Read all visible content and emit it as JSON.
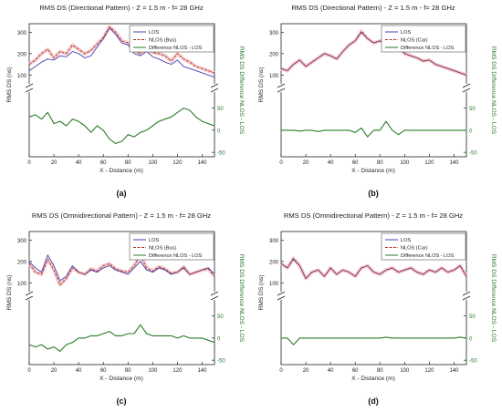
{
  "colors": {
    "los": "#4a3fb0",
    "nlos": "#b03030",
    "nlos_shade": "#f2c4c4",
    "diff": "#2a7a2a",
    "axis": "#222222",
    "right_axis": "#2a7a2a"
  },
  "panels": [
    {
      "label": "(a)",
      "title": "RMS DS (Directional Pattern) - Z = 1.5 m - f= 28 GHz",
      "ylabel_left": "RMS DS (ns)",
      "ylabel_right": "RMS DS Difference NLOS - LOS",
      "xlabel": "X - Distance (m)",
      "legend": [
        "LOS",
        "NLOS (Bus)",
        "Difference NLOS - LOS"
      ],
      "left_ticks": [
        100,
        200,
        300
      ],
      "right_ticks": [
        -50,
        0,
        50
      ],
      "x_ticks": [
        0,
        20,
        40,
        60,
        80,
        100,
        120,
        140
      ]
    },
    {
      "label": "(b)",
      "title": "RMS DS (Directional Pattern) - Z = 1.5 m - f= 28 GHz",
      "ylabel_left": "RMS DS (ns)",
      "ylabel_right": "RMS DS Difference NLOS - LOS",
      "xlabel": "X - Distance (m)",
      "legend": [
        "LOS",
        "NLOS (Car)",
        "Difference NLOS - LOS"
      ],
      "left_ticks": [
        100,
        200,
        300
      ],
      "right_ticks": [
        -50,
        0,
        50
      ],
      "x_ticks": [
        0,
        20,
        40,
        60,
        80,
        100,
        120,
        140
      ]
    },
    {
      "label": "(c)",
      "title": "RMS DS (Omnidirectional Pattern) - Z = 1.5 m - f= 28 GHz",
      "ylabel_left": "RMS DS (ns)",
      "ylabel_right": "RMS DS Difference NLOS - LOS",
      "xlabel": "X - Distance (m)",
      "legend": [
        "LOS",
        "NLOS (Bus)",
        "Difference NLOS - LOS"
      ],
      "left_ticks": [
        100,
        200,
        300
      ],
      "right_ticks": [
        -50,
        0,
        50
      ],
      "x_ticks": [
        0,
        20,
        40,
        60,
        80,
        100,
        120,
        140
      ]
    },
    {
      "label": "(d)",
      "title": "RMS DS (Omnidirectional Pattern) - Z = 1.5 m - f= 28 GHz",
      "ylabel_left": "RMS DS (ns)",
      "ylabel_right": "RMS DS Difference NLOS - LOS",
      "xlabel": "X - Distance (m)",
      "legend": [
        "LOS",
        "NLOS (Car)",
        "Difference NLOS - LOS"
      ],
      "left_ticks": [
        100,
        200,
        300
      ],
      "right_ticks": [
        -50,
        0,
        50
      ],
      "x_ticks": [
        0,
        20,
        40,
        60,
        80,
        100,
        120,
        140
      ]
    }
  ],
  "chart_data": [
    {
      "type": "line",
      "title": "RMS DS (Directional Pattern) - Z = 1.5 m - f= 28 GHz",
      "xlabel": "X - Distance (m)",
      "ylabel": "RMS DS (ns)",
      "ylabel_right": "RMS DS Difference NLOS - LOS",
      "xlim": [
        0,
        150
      ],
      "ylim_upper": [
        50,
        340
      ],
      "ylim_lower": [
        -60,
        80
      ],
      "x": [
        0,
        5,
        10,
        15,
        20,
        25,
        30,
        35,
        40,
        45,
        50,
        55,
        60,
        65,
        70,
        75,
        80,
        85,
        90,
        95,
        100,
        105,
        110,
        115,
        120,
        125,
        130,
        135,
        140,
        145,
        150
      ],
      "series": [
        {
          "name": "LOS",
          "axis": "left",
          "values": [
            120,
            140,
            160,
            175,
            170,
            190,
            185,
            210,
            200,
            180,
            190,
            230,
            270,
            320,
            290,
            250,
            240,
            200,
            190,
            210,
            185,
            175,
            160,
            150,
            170,
            140,
            130,
            120,
            110,
            100,
            90
          ]
        },
        {
          "name": "NLOS (Bus)",
          "axis": "left",
          "values": [
            150,
            170,
            200,
            220,
            180,
            210,
            200,
            240,
            220,
            200,
            215,
            245,
            275,
            325,
            300,
            260,
            250,
            215,
            200,
            230,
            205,
            200,
            190,
            165,
            200,
            175,
            160,
            140,
            130,
            120,
            110
          ]
        },
        {
          "name": "Difference NLOS - LOS",
          "axis": "right",
          "values": [
            30,
            35,
            25,
            40,
            15,
            20,
            10,
            25,
            20,
            10,
            -5,
            10,
            0,
            -20,
            -30,
            -25,
            -10,
            -15,
            -5,
            0,
            10,
            20,
            25,
            30,
            40,
            50,
            45,
            30,
            20,
            15,
            10
          ]
        }
      ]
    },
    {
      "type": "line",
      "title": "RMS DS (Directional Pattern) - Z = 1.5 m - f= 28 GHz",
      "xlabel": "X - Distance (m)",
      "ylabel": "RMS DS (ns)",
      "ylabel_right": "RMS DS Difference NLOS - LOS",
      "xlim": [
        0,
        150
      ],
      "ylim_upper": [
        50,
        340
      ],
      "ylim_lower": [
        -60,
        80
      ],
      "x": [
        0,
        5,
        10,
        15,
        20,
        25,
        30,
        35,
        40,
        45,
        50,
        55,
        60,
        65,
        70,
        75,
        80,
        85,
        90,
        95,
        100,
        105,
        110,
        115,
        120,
        125,
        130,
        135,
        140,
        145,
        150
      ],
      "series": [
        {
          "name": "LOS",
          "axis": "left",
          "values": [
            130,
            120,
            150,
            170,
            140,
            160,
            180,
            200,
            190,
            175,
            210,
            240,
            260,
            300,
            270,
            250,
            260,
            240,
            210,
            230,
            200,
            190,
            180,
            165,
            170,
            150,
            140,
            130,
            120,
            110,
            100
          ]
        },
        {
          "name": "NLOS (Car)",
          "axis": "left",
          "values": [
            130,
            120,
            150,
            170,
            140,
            160,
            180,
            200,
            190,
            175,
            210,
            240,
            260,
            305,
            270,
            250,
            260,
            245,
            215,
            230,
            200,
            190,
            180,
            165,
            170,
            150,
            140,
            130,
            120,
            110,
            100
          ]
        },
        {
          "name": "Difference NLOS - LOS",
          "axis": "right",
          "values": [
            0,
            0,
            0,
            -2,
            0,
            0,
            -3,
            0,
            0,
            0,
            0,
            0,
            -5,
            5,
            -15,
            0,
            0,
            20,
            0,
            -10,
            0,
            0,
            0,
            0,
            0,
            0,
            0,
            0,
            0,
            0,
            0
          ]
        }
      ]
    },
    {
      "type": "line",
      "title": "RMS DS (Omnidirectional Pattern) - Z = 1.5 m - f= 28 GHz",
      "xlabel": "X - Distance (m)",
      "ylabel": "RMS DS (ns)",
      "ylabel_right": "RMS DS Difference NLOS - LOS",
      "xlim": [
        0,
        150
      ],
      "ylim_upper": [
        50,
        340
      ],
      "ylim_lower": [
        -60,
        80
      ],
      "x": [
        0,
        5,
        10,
        15,
        20,
        25,
        30,
        35,
        40,
        45,
        50,
        55,
        60,
        65,
        70,
        75,
        80,
        85,
        90,
        95,
        100,
        105,
        110,
        115,
        120,
        125,
        130,
        135,
        140,
        145,
        150
      ],
      "series": [
        {
          "name": "LOS",
          "axis": "left",
          "values": [
            200,
            170,
            150,
            230,
            180,
            110,
            130,
            180,
            150,
            140,
            160,
            150,
            170,
            180,
            160,
            150,
            140,
            170,
            200,
            160,
            150,
            170,
            160,
            140,
            150,
            170,
            140,
            150,
            160,
            170,
            140
          ]
        },
        {
          "name": "NLOS (Bus)",
          "axis": "left",
          "values": [
            190,
            150,
            140,
            210,
            160,
            90,
            120,
            170,
            150,
            140,
            165,
            155,
            180,
            190,
            165,
            155,
            150,
            180,
            230,
            170,
            155,
            175,
            165,
            145,
            150,
            175,
            140,
            150,
            160,
            165,
            130
          ]
        },
        {
          "name": "Difference NLOS - LOS",
          "axis": "right",
          "values": [
            -15,
            -20,
            -15,
            -25,
            -20,
            -30,
            -15,
            -10,
            0,
            0,
            5,
            5,
            10,
            15,
            5,
            5,
            10,
            10,
            30,
            10,
            5,
            5,
            5,
            5,
            0,
            5,
            0,
            0,
            0,
            -5,
            -10
          ]
        }
      ]
    },
    {
      "type": "line",
      "title": "RMS DS (Omnidirectional Pattern) - Z = 1.5 m - f= 28 GHz",
      "xlabel": "X - Distance (m)",
      "ylabel": "RMS DS (ns)",
      "ylabel_right": "RMS DS Difference NLOS - LOS",
      "xlim": [
        0,
        150
      ],
      "ylim_upper": [
        50,
        340
      ],
      "ylim_lower": [
        -60,
        80
      ],
      "x": [
        0,
        5,
        10,
        15,
        20,
        25,
        30,
        35,
        40,
        45,
        50,
        55,
        60,
        65,
        70,
        75,
        80,
        85,
        90,
        95,
        100,
        105,
        110,
        115,
        120,
        125,
        130,
        135,
        140,
        145,
        150
      ],
      "series": [
        {
          "name": "LOS",
          "axis": "left",
          "values": [
            190,
            170,
            210,
            180,
            120,
            150,
            160,
            130,
            170,
            140,
            160,
            150,
            130,
            170,
            180,
            150,
            140,
            160,
            170,
            150,
            160,
            170,
            150,
            140,
            160,
            150,
            170,
            150,
            160,
            180,
            130
          ]
        },
        {
          "name": "NLOS (Car)",
          "axis": "left",
          "values": [
            190,
            170,
            215,
            180,
            120,
            150,
            160,
            130,
            170,
            140,
            160,
            150,
            130,
            170,
            180,
            150,
            140,
            160,
            170,
            150,
            160,
            170,
            150,
            140,
            160,
            150,
            170,
            150,
            160,
            180,
            130
          ]
        },
        {
          "name": "Difference NLOS - LOS",
          "axis": "right",
          "values": [
            0,
            0,
            -15,
            0,
            0,
            0,
            0,
            0,
            0,
            0,
            0,
            0,
            0,
            0,
            0,
            0,
            0,
            2,
            0,
            0,
            0,
            0,
            0,
            0,
            0,
            0,
            0,
            0,
            0,
            2,
            0
          ]
        }
      ]
    }
  ]
}
